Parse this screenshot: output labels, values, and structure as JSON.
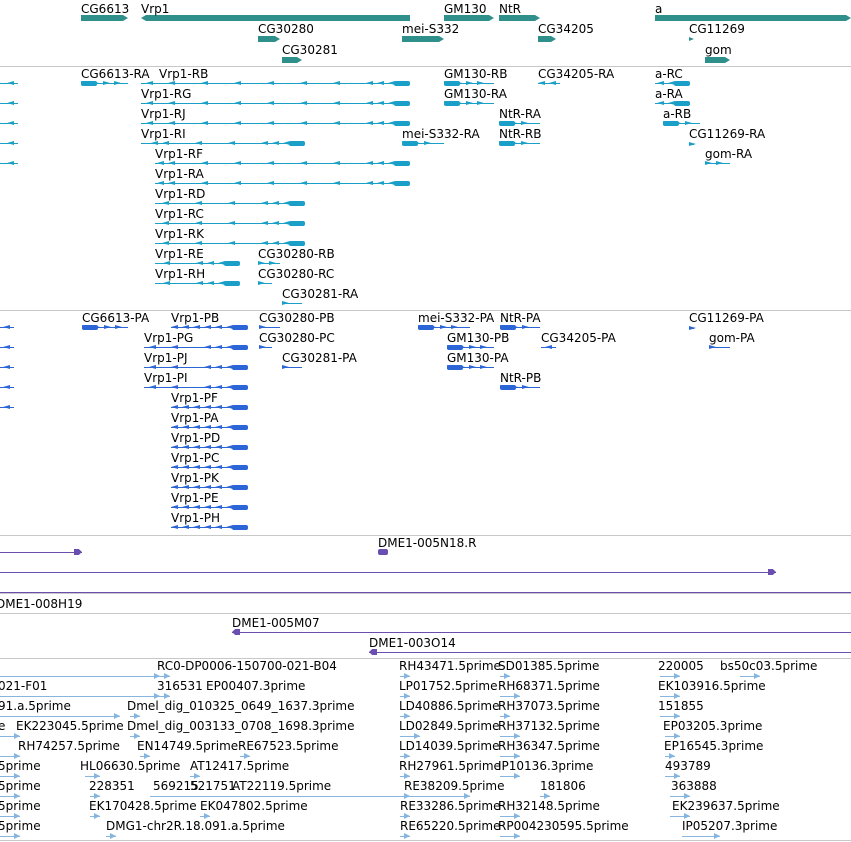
{
  "window": {
    "title": "Genome browser"
  },
  "colors": {
    "gene": "#2f8f8a",
    "transcript": "#1aa0c8",
    "protein": "#2c66d6",
    "clone": "#6a4fb0",
    "est": "#86b6e0",
    "separator": "#c8c8c8"
  },
  "tracks": {
    "genes": {
      "items": [
        {
          "label": "CG6613"
        },
        {
          "label": "Vrp1"
        },
        {
          "label": "GM130"
        },
        {
          "label": "NtR"
        },
        {
          "label": "a"
        },
        {
          "label": "CG30280"
        },
        {
          "label": "mei-S332"
        },
        {
          "label": "CG34205"
        },
        {
          "label": "CG11269"
        },
        {
          "label": "CG30281"
        },
        {
          "label": "gom"
        }
      ]
    },
    "transcripts": {
      "items": [
        {
          "label": "CG6613-RA"
        },
        {
          "label": "Vrp1-RB"
        },
        {
          "label": "GM130-RB"
        },
        {
          "label": "CG34205-RA"
        },
        {
          "label": "a-RC"
        },
        {
          "label": "Vrp1-RG"
        },
        {
          "label": "GM130-RA"
        },
        {
          "label": "a-RA"
        },
        {
          "label": "Vrp1-RJ"
        },
        {
          "label": "NtR-RA"
        },
        {
          "label": "a-RB"
        },
        {
          "label": "Vrp1-RI"
        },
        {
          "label": "mei-S332-RA"
        },
        {
          "label": "NtR-RB"
        },
        {
          "label": "CG11269-RA"
        },
        {
          "label": "Vrp1-RF"
        },
        {
          "label": "gom-RA"
        },
        {
          "label": "Vrp1-RA"
        },
        {
          "label": "Vrp1-RD"
        },
        {
          "label": "Vrp1-RC"
        },
        {
          "label": "Vrp1-RK"
        },
        {
          "label": "Vrp1-RE"
        },
        {
          "label": "CG30280-RB"
        },
        {
          "label": "Vrp1-RH"
        },
        {
          "label": "CG30280-RC"
        },
        {
          "label": "CG30281-RA"
        }
      ]
    },
    "proteins": {
      "items": [
        {
          "label": "CG6613-PA"
        },
        {
          "label": "Vrp1-PB"
        },
        {
          "label": "CG30280-PB"
        },
        {
          "label": "mei-S332-PA"
        },
        {
          "label": "NtR-PA"
        },
        {
          "label": "CG11269-PA"
        },
        {
          "label": "Vrp1-PG"
        },
        {
          "label": "CG30280-PC"
        },
        {
          "label": "GM130-PB"
        },
        {
          "label": "CG34205-PA"
        },
        {
          "label": "gom-PA"
        },
        {
          "label": "Vrp1-PJ"
        },
        {
          "label": "CG30281-PA"
        },
        {
          "label": "GM130-PA"
        },
        {
          "label": "Vrp1-PI"
        },
        {
          "label": "NtR-PB"
        },
        {
          "label": "Vrp1-PF"
        },
        {
          "label": "Vrp1-PA"
        },
        {
          "label": "Vrp1-PD"
        },
        {
          "label": "Vrp1-PC"
        },
        {
          "label": "Vrp1-PK"
        },
        {
          "label": "Vrp1-PE"
        },
        {
          "label": "Vrp1-PH"
        }
      ]
    },
    "clones": {
      "items": [
        {
          "label": "DME1-005N18.R"
        },
        {
          "label": "DME1-008H19"
        },
        {
          "label": "DME1-005M07"
        },
        {
          "label": "DME1-003O14"
        }
      ]
    },
    "ests": {
      "items": [
        {
          "label": "RC0-DP0006-150700-021-B04"
        },
        {
          "label": "RH43471.5prime"
        },
        {
          "label": "SD01385.5prime"
        },
        {
          "label": "220005"
        },
        {
          "label": "bs50c03.5prime"
        },
        {
          "label": "021-F01"
        },
        {
          "label": "316531"
        },
        {
          "label": "EP00407.3prime"
        },
        {
          "label": "LP01752.5prime"
        },
        {
          "label": "RH68371.5prime"
        },
        {
          "label": "EK103916.5prime"
        },
        {
          "label": "91.a.5prime"
        },
        {
          "label": "Dmel_dig_010325_0649_1637.3prime"
        },
        {
          "label": "LD40886.5prime"
        },
        {
          "label": "RH37073.5prime"
        },
        {
          "label": "151855"
        },
        {
          "label": "e"
        },
        {
          "label": "EK223045.5prime"
        },
        {
          "label": "Dmel_dig_003133_0708_1698.3prime"
        },
        {
          "label": "LD02849.5prime"
        },
        {
          "label": "RH37132.5prime"
        },
        {
          "label": "EP03205.3prime"
        },
        {
          "label": "RH74257.5prime"
        },
        {
          "label": "EN14749.5prime"
        },
        {
          "label": "RE67523.5prime"
        },
        {
          "label": "LD14039.5prime"
        },
        {
          "label": "RH36347.5prime"
        },
        {
          "label": "EP16545.3prime"
        },
        {
          "label": "5prime"
        },
        {
          "label": "HL06630.5prime"
        },
        {
          "label": "AT12417.5prime"
        },
        {
          "label": "RH27961.5prime"
        },
        {
          "label": "IP10136.3prime"
        },
        {
          "label": "493789"
        },
        {
          "label": "5prime"
        },
        {
          "label": "228351"
        },
        {
          "label": "569215"
        },
        {
          "label": "521751"
        },
        {
          "label": "AT22119.5prime"
        },
        {
          "label": "RE38209.5prime"
        },
        {
          "label": "181806"
        },
        {
          "label": "363888"
        },
        {
          "label": "5prime"
        },
        {
          "label": "EK170428.5prime"
        },
        {
          "label": "EK047802.5prime"
        },
        {
          "label": "RE33286.5prime"
        },
        {
          "label": "RH32148.5prime"
        },
        {
          "label": "EK239637.5prime"
        },
        {
          "label": "5prime"
        },
        {
          "label": "DMG1-chr2R.18.091.a.5prime"
        },
        {
          "label": "RE65220.5prime"
        },
        {
          "label": "RP004230595.5prime"
        },
        {
          "label": "IP05207.3prime"
        }
      ]
    }
  }
}
